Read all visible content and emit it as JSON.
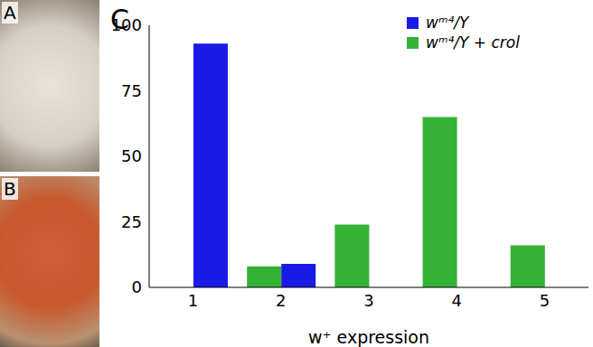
{
  "panels": [
    "A",
    "B"
  ],
  "chart_data": {
    "type": "bar",
    "panel_label": "C",
    "categories": [
      "1",
      "2",
      "3",
      "4",
      "5"
    ],
    "series": [
      {
        "name": "wᵐ⁴/Y",
        "color": "#1a1ae6",
        "values": [
          93,
          9,
          null,
          null,
          null
        ]
      },
      {
        "name": "wᵐ⁴/Y + crol",
        "color": "#33b233",
        "values": [
          null,
          8,
          24,
          65,
          16
        ]
      }
    ],
    "x_label": "w⁺ expression",
    "ylim": [
      0,
      100
    ],
    "yticks": [
      0,
      25,
      50,
      75,
      100
    ],
    "legend": "upper right",
    "grid": false
  }
}
